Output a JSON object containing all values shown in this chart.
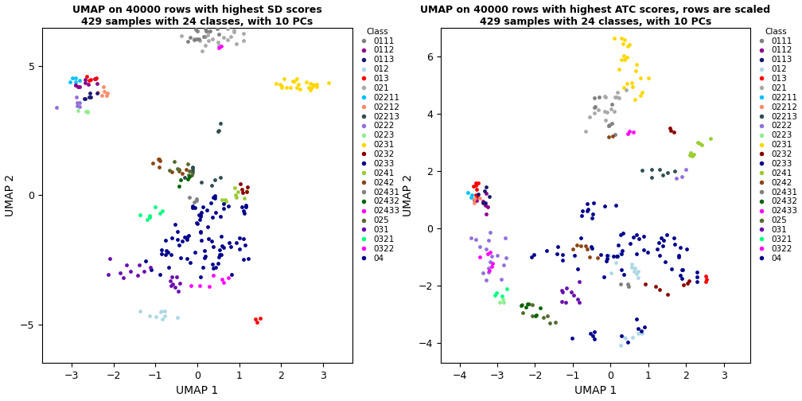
{
  "title1": "UMAP on 40000 rows with highest SD scores\n429 samples with 24 classes, with 10 PCs",
  "title2": "UMAP on 40000 rows with highest ATC scores, rows are scaled\n429 samples with 24 classes, with 10 PCs",
  "xlabel": "UMAP 1",
  "ylabel": "UMAP 2",
  "legend_title": "Class",
  "classes": [
    "0111",
    "0112",
    "0113",
    "012",
    "013",
    "021",
    "02211",
    "02212",
    "02213",
    "0222",
    "0223",
    "0231",
    "0232",
    "0233",
    "0241",
    "0242",
    "02431",
    "02432",
    "02433",
    "025",
    "031",
    "0321",
    "0322",
    "04"
  ],
  "class_colors": {
    "0111": "#808080",
    "0112": "#8B008B",
    "0113": "#191970",
    "012": "#ADD8E6",
    "013": "#FF0000",
    "021": "#A9A9A9",
    "02211": "#00BFFF",
    "02212": "#FF8C69",
    "02213": "#2F4F4F",
    "0222": "#9370DB",
    "0223": "#90EE90",
    "0231": "#FFD700",
    "0232": "#8B0000",
    "0233": "#00008B",
    "0241": "#9ACD32",
    "0242": "#8B4513",
    "02431": "#808080",
    "02432": "#006400",
    "02433": "#FF00FF",
    "025": "#556B2F",
    "031": "#6A0DAD",
    "0321": "#00FF7F",
    "0322": "#FF00FF",
    "04": "#00008B"
  },
  "plot1": {
    "xlim": [
      -3.7,
      3.7
    ],
    "ylim": [
      -6.5,
      6.5
    ],
    "xticks": [
      -3,
      -2,
      -1,
      0,
      1,
      2,
      3
    ],
    "yticks": [
      -5,
      0,
      5
    ]
  },
  "plot2": {
    "xlim": [
      -4.5,
      3.7
    ],
    "ylim": [
      -4.7,
      7.0
    ],
    "xticks": [
      -4,
      -3,
      -2,
      -1,
      0,
      1,
      2,
      3
    ],
    "yticks": [
      -4,
      -2,
      0,
      2,
      4,
      6
    ]
  },
  "point_size": 12,
  "bg_color": "#FFFFFF",
  "font_size_title": 9,
  "font_size_axis": 10,
  "font_size_legend": 7.5,
  "font_size_tick": 9
}
